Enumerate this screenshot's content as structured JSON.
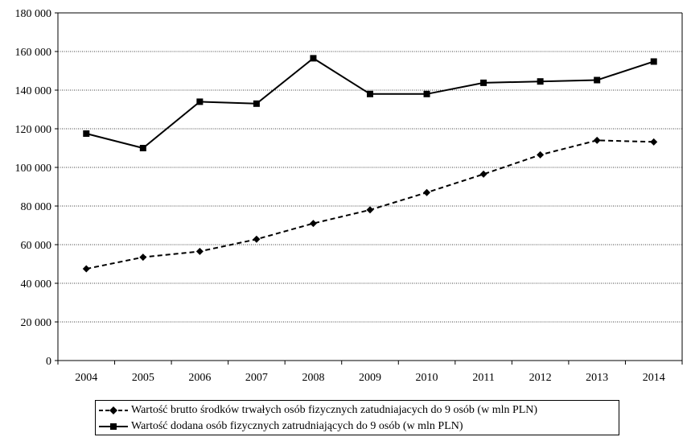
{
  "chart_data": {
    "type": "line",
    "title": "",
    "xlabel": "",
    "ylabel": "",
    "categories": [
      "2004",
      "2005",
      "2006",
      "2007",
      "2008",
      "2009",
      "2010",
      "2011",
      "2012",
      "2013",
      "2014"
    ],
    "ylim": [
      0,
      180000
    ],
    "yticks": [
      0,
      20000,
      40000,
      60000,
      80000,
      100000,
      120000,
      140000,
      160000,
      180000
    ],
    "ytick_labels": [
      "0",
      "20 000",
      "40 000",
      "60 000",
      "80 000",
      "100 000",
      "120 000",
      "140 000",
      "160 000",
      "180 000"
    ],
    "grid": true,
    "legend_position": "bottom",
    "series": [
      {
        "name": "Wartość brutto środków trwałych osób fizycznych zatudniajacych do 9 osób (w mln PLN)",
        "style": "dashed",
        "marker": "diamond",
        "color": "#000000",
        "values": [
          47500,
          53500,
          56500,
          62800,
          71000,
          78000,
          87000,
          96500,
          106500,
          114000,
          113200
        ]
      },
      {
        "name": "Wartość dodana osób fizycznych zatrudniających do 9 osób (w mln PLN)",
        "style": "solid",
        "marker": "square",
        "color": "#000000",
        "values": [
          117500,
          110000,
          134000,
          133000,
          156500,
          138000,
          138000,
          143800,
          144500,
          145200,
          154800
        ]
      }
    ]
  }
}
